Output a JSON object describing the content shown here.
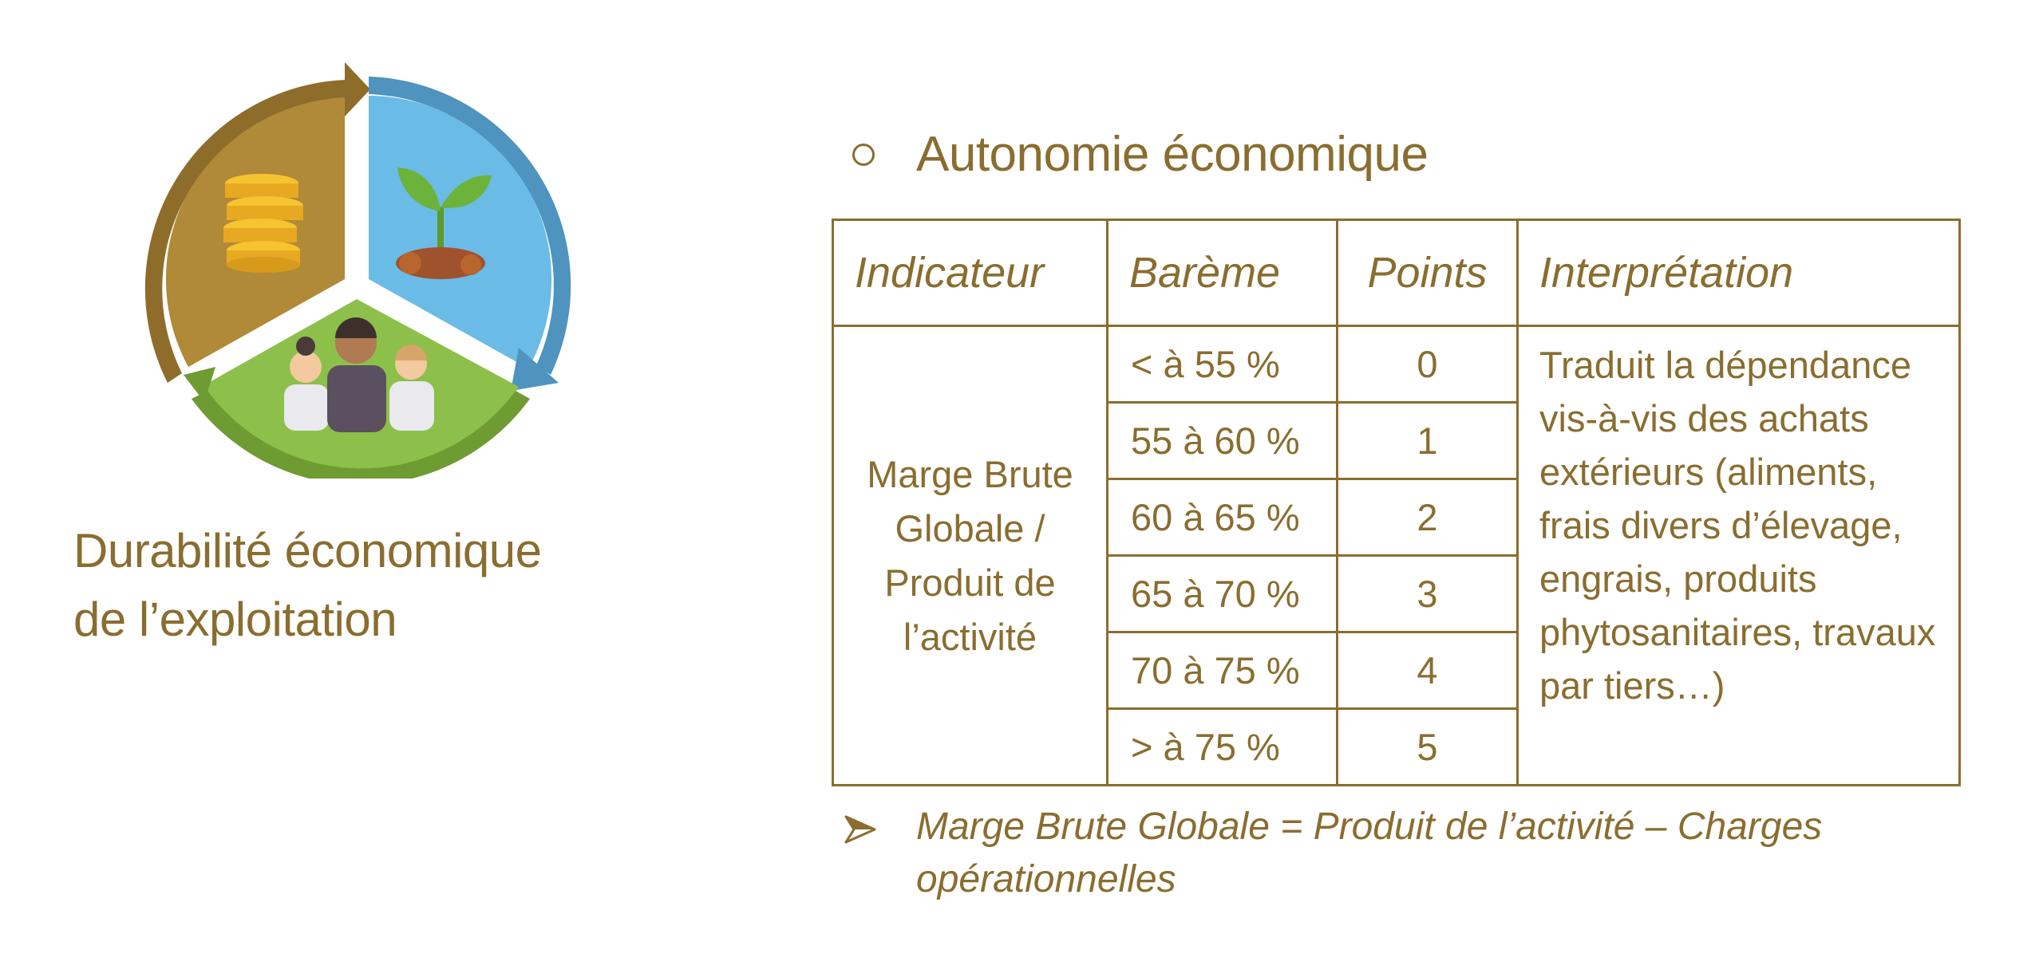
{
  "left_panel": {
    "title_line1": "Durabilité économique",
    "title_line2": "de l’exploitation",
    "icons": [
      "coins-icon",
      "plant-icon",
      "people-icon"
    ],
    "segment_colors": {
      "economic": "#b08a38",
      "environmental": "#6bbbe7",
      "social": "#8dc04a"
    }
  },
  "section": {
    "bullet": "○",
    "heading": "Autonomie économique"
  },
  "table": {
    "headers": [
      "Indicateur",
      "Barème",
      "Points",
      "Interprétation"
    ],
    "indicator": "Marge Brute Globale / Produit de l’activité",
    "rows": [
      {
        "bareme": "< à 55 %",
        "points": "0"
      },
      {
        "bareme": "55 à 60 %",
        "points": "1"
      },
      {
        "bareme": "60 à 65 %",
        "points": "2"
      },
      {
        "bareme": "65 à 70 %",
        "points": "3"
      },
      {
        "bareme": "70 à 75 %",
        "points": "4"
      },
      {
        "bareme": "> à 75 %",
        "points": "5"
      }
    ],
    "interpretation": "Traduit la dépendance vis-à-vis des achats extérieurs (aliments, frais divers d’élevage, engrais, produits phytosanitaires, travaux par tiers…)"
  },
  "formula": {
    "bullet_icon": "arrowhead-icon",
    "text": "Marge Brute Globale = Produit de l’activité – Charges opérationnelles"
  },
  "colors": {
    "text": "#8a6d2f",
    "border": "#8a6d2f"
  }
}
